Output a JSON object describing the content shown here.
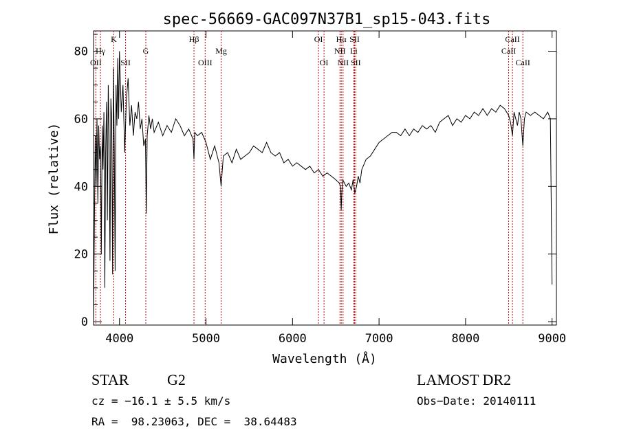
{
  "chart_data": {
    "type": "line",
    "title": "spec-56669-GAC097N37B1_sp15-043.fits",
    "xlabel": "Wavelength (Å)",
    "ylabel": "Flux (relative)",
    "xlim": [
      3700,
      9050
    ],
    "ylim": [
      -1,
      86
    ],
    "x_ticks": [
      4000,
      5000,
      6000,
      7000,
      8000,
      9000
    ],
    "y_ticks": [
      0,
      20,
      40,
      60,
      80
    ],
    "grid": false,
    "series": [
      {
        "x": [
          3700,
          3710,
          3720,
          3730,
          3740,
          3750,
          3760,
          3770,
          3780,
          3790,
          3800,
          3810,
          3820,
          3830,
          3840,
          3850,
          3860,
          3870,
          3880,
          3890,
          3900,
          3910,
          3920,
          3930,
          3940,
          3950,
          3960,
          3970,
          3980,
          3990,
          4000,
          4020,
          4040,
          4060,
          4080,
          4100,
          4120,
          4140,
          4160,
          4180,
          4200,
          4220,
          4240,
          4260,
          4280,
          4300,
          4310,
          4320,
          4330,
          4340,
          4360,
          4380,
          4400,
          4450,
          4500,
          4550,
          4600,
          4650,
          4700,
          4750,
          4800,
          4850,
          4861,
          4870,
          4900,
          4950,
          5000,
          5050,
          5100,
          5150,
          5175,
          5200,
          5250,
          5300,
          5350,
          5400,
          5450,
          5500,
          5550,
          5600,
          5650,
          5700,
          5750,
          5800,
          5850,
          5900,
          5950,
          6000,
          6050,
          6100,
          6150,
          6200,
          6250,
          6300,
          6350,
          6400,
          6450,
          6500,
          6540,
          6555,
          6563,
          6570,
          6580,
          6600,
          6620,
          6650,
          6680,
          6700,
          6720,
          6740,
          6760,
          6780,
          6800,
          6850,
          6900,
          6950,
          7000,
          7050,
          7100,
          7150,
          7200,
          7250,
          7300,
          7350,
          7400,
          7450,
          7500,
          7550,
          7600,
          7650,
          7700,
          7750,
          7800,
          7850,
          7900,
          7950,
          8000,
          8050,
          8100,
          8150,
          8200,
          8250,
          8300,
          8350,
          8400,
          8450,
          8498,
          8520,
          8542,
          8560,
          8580,
          8600,
          8620,
          8640,
          8662,
          8680,
          8700,
          8750,
          8800,
          8850,
          8900,
          8950,
          8980,
          9000
        ],
        "y": [
          0,
          30,
          55,
          40,
          60,
          35,
          58,
          48,
          52,
          20,
          58,
          45,
          62,
          10,
          50,
          65,
          30,
          70,
          55,
          18,
          66,
          60,
          14,
          75,
          50,
          15,
          70,
          58,
          78,
          60,
          80,
          62,
          70,
          50,
          66,
          72,
          58,
          64,
          55,
          62,
          60,
          65,
          57,
          60,
          52,
          54,
          32,
          55,
          58,
          61,
          57,
          60,
          56,
          59,
          55,
          58,
          56,
          60,
          58,
          55,
          57,
          54,
          48,
          56,
          55,
          56,
          53,
          48,
          52,
          47,
          40,
          49,
          50,
          47,
          51,
          48,
          49,
          50,
          52,
          51,
          50,
          53,
          50,
          49,
          50,
          47,
          48,
          46,
          47,
          46,
          45,
          46,
          44,
          45,
          43,
          44,
          43,
          42,
          41,
          40,
          33,
          38,
          42,
          41,
          40,
          41,
          39,
          42,
          38,
          40,
          43,
          41,
          45,
          48,
          49,
          51,
          53,
          54,
          55,
          56,
          56,
          55,
          57,
          55,
          57,
          56,
          58,
          57,
          58,
          56,
          59,
          60,
          61,
          58,
          60,
          59,
          61,
          60,
          62,
          61,
          63,
          61,
          63,
          62,
          64,
          63,
          61,
          59,
          55,
          62,
          60,
          58,
          62,
          60,
          52,
          60,
          62,
          61,
          62,
          61,
          60,
          62,
          60,
          11
        ]
      }
    ],
    "annotations": [
      {
        "label": "OII",
        "wavelength": 3727,
        "row": 3
      },
      {
        "label": "Hγ",
        "wavelength": 3780,
        "row": 2
      },
      {
        "label": "K",
        "wavelength": 3934,
        "row": 1
      },
      {
        "label": "SII",
        "wavelength": 4070,
        "row": 3
      },
      {
        "label": "G",
        "wavelength": 4304,
        "row": 2
      },
      {
        "label": "Hβ",
        "wavelength": 4861,
        "row": 1
      },
      {
        "label": "OIII",
        "wavelength": 4990,
        "row": 3
      },
      {
        "label": "Mg",
        "wavelength": 5175,
        "row": 2
      },
      {
        "label": "OI",
        "wavelength": 6300,
        "row": 1
      },
      {
        "label": "OI",
        "wavelength": 6364,
        "row": 3
      },
      {
        "label": "Hα",
        "wavelength": 6563,
        "row": 1
      },
      {
        "label": "NII",
        "wavelength": 6548,
        "row": 2
      },
      {
        "label": "NII",
        "wavelength": 6584,
        "row": 3
      },
      {
        "label": "SII",
        "wavelength": 6717,
        "row": 1
      },
      {
        "label": "Li",
        "wavelength": 6708,
        "row": 2
      },
      {
        "label": "SII",
        "wavelength": 6731,
        "row": 3
      },
      {
        "label": "CaII",
        "wavelength": 8542,
        "row": 1
      },
      {
        "label": "CaII",
        "wavelength": 8498,
        "row": 2
      },
      {
        "label": "CaII",
        "wavelength": 8662,
        "row": 3
      }
    ]
  },
  "info": {
    "object_class": "STAR",
    "subclass": "G2",
    "survey": "LAMOST DR2",
    "redshift": "cz = −16.1 ± 5.5 km/s",
    "obs_date": "Obs−Date: 20140111",
    "coords": "RA =  98.23063, DEC =  38.64483"
  },
  "colors": {
    "line": "#000000",
    "marker_lines": "#cc0000",
    "background": "#ffffff"
  }
}
